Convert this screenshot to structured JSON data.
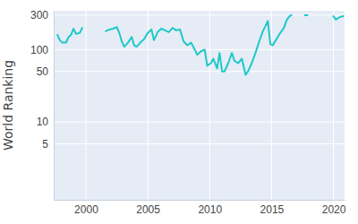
{
  "chart_data": {
    "type": "line",
    "y_label": "World Ranking",
    "x": [
      1997.7,
      1997.9,
      1998.1,
      1998.4,
      1998.6,
      1998.8,
      1999.0,
      1999.2,
      1999.5,
      1999.7,
      2000.6,
      2001.6,
      2001.9,
      2002.2,
      2002.5,
      2002.7,
      2002.9,
      2003.1,
      2003.4,
      2003.7,
      2003.9,
      2004.1,
      2004.4,
      2004.7,
      2005.0,
      2005.3,
      2005.5,
      2005.8,
      2006.1,
      2006.4,
      2006.7,
      2007.0,
      2007.3,
      2007.6,
      2007.9,
      2008.2,
      2008.5,
      2008.8,
      2009.0,
      2009.3,
      2009.6,
      2009.8,
      2010.1,
      2010.3,
      2010.6,
      2010.8,
      2011.0,
      2011.2,
      2011.5,
      2011.8,
      2012.0,
      2012.3,
      2012.6,
      2012.9,
      2013.1,
      2013.4,
      2013.7,
      2014.0,
      2014.3,
      2014.5,
      2014.7,
      2014.9,
      2015.1,
      2015.4,
      2015.7,
      2016.0,
      2016.2,
      2016.4,
      2016.6,
      2017.2,
      2017.7,
      2017.9,
      2019.0,
      2020.0,
      2020.2,
      2020.4,
      2020.6,
      2020.8
    ],
    "series": [
      {
        "name": "World Ranking",
        "color": "#1ec8c8",
        "values": [
          160,
          135,
          125,
          125,
          150,
          160,
          195,
          165,
          170,
          200,
          null,
          180,
          190,
          195,
          205,
          170,
          130,
          110,
          125,
          150,
          115,
          110,
          125,
          140,
          170,
          190,
          135,
          175,
          195,
          185,
          175,
          200,
          185,
          190,
          130,
          115,
          125,
          100,
          85,
          95,
          100,
          60,
          65,
          75,
          55,
          90,
          50,
          50,
          65,
          90,
          70,
          65,
          75,
          45,
          50,
          65,
          90,
          130,
          180,
          210,
          250,
          120,
          115,
          140,
          170,
          200,
          250,
          285,
          300,
          null,
          300,
          300,
          null,
          290,
          260,
          275,
          285,
          290
        ]
      }
    ],
    "xlim": [
      1997.4,
      2020.9
    ],
    "xticks": [
      2000,
      2005,
      2010,
      2015,
      2020
    ],
    "ylim": [
      0.84,
      345
    ],
    "yticks": [
      5,
      10,
      50,
      100,
      300
    ],
    "log": "y",
    "grid": true
  }
}
